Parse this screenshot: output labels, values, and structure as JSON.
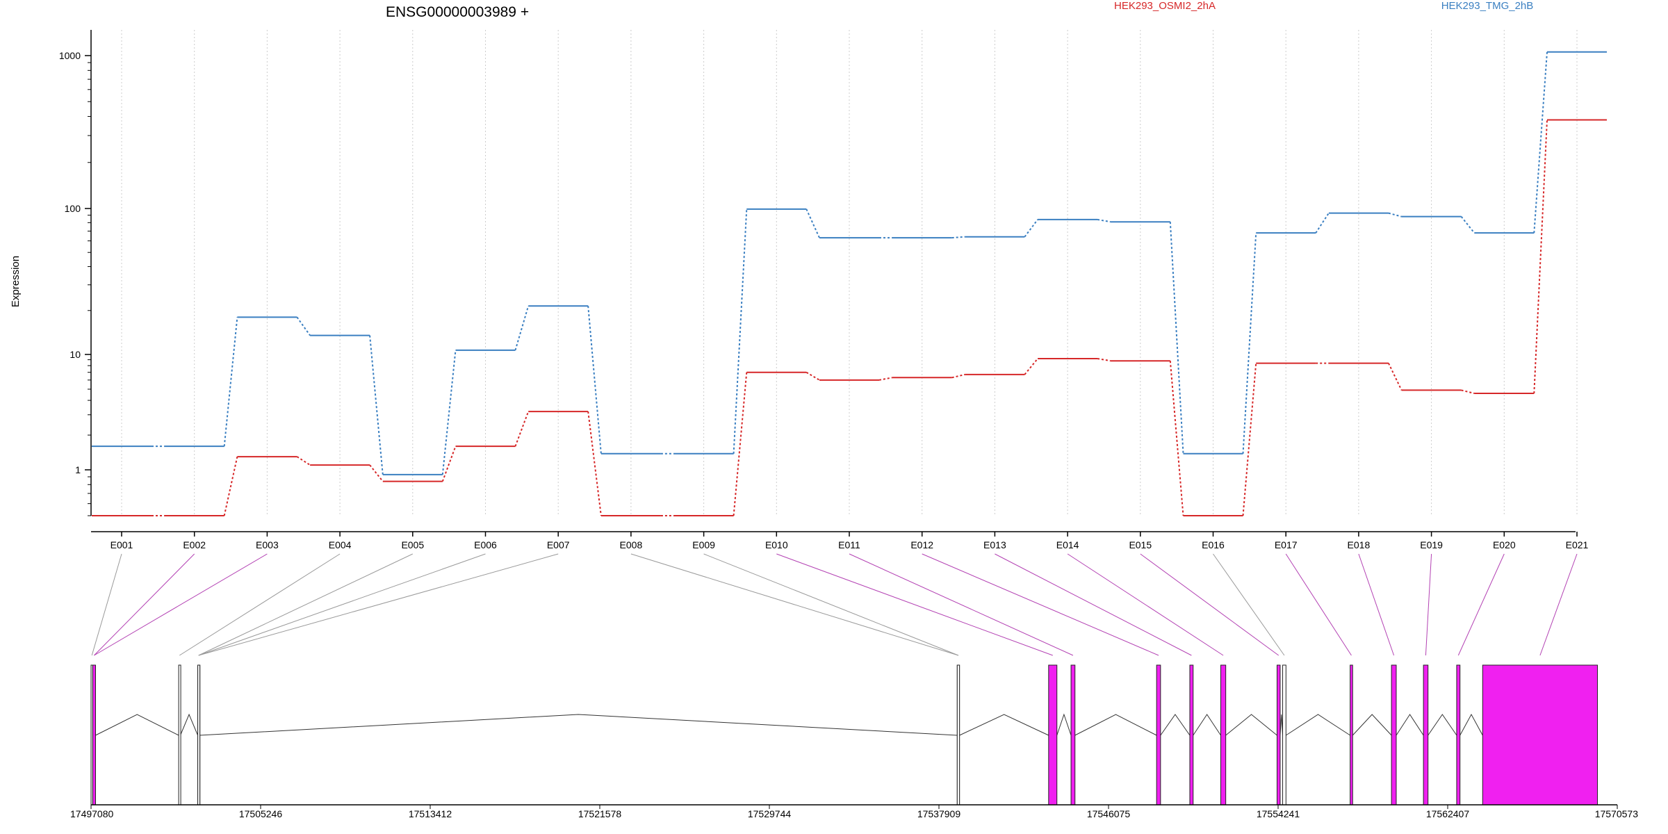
{
  "chart_data": {
    "type": "line",
    "title": "ENSG00000003989 +",
    "xlabel": "",
    "ylabel": "Expression",
    "y_scale": "log",
    "ylim": [
      0.5,
      1200
    ],
    "yticks": [
      1,
      10,
      100,
      1000
    ],
    "ytick_labels": [
      "1",
      "10",
      "100",
      "1000"
    ],
    "grid": "vertical dotted lines at each exon",
    "legend_position": "top-right",
    "categories": [
      "E001",
      "E002",
      "E003",
      "E004",
      "E005",
      "E006",
      "E007",
      "E008",
      "E009",
      "E010",
      "E011",
      "E012",
      "E013",
      "E014",
      "E015",
      "E016",
      "E017",
      "E018",
      "E019",
      "E020",
      "E021"
    ],
    "series": [
      {
        "name": "HEK293_OSMI2_2hA",
        "color": "#d62728",
        "values": [
          0.48,
          0.48,
          1.3,
          1.1,
          0.84,
          1.6,
          3.2,
          0.48,
          0.48,
          7.0,
          6.0,
          6.3,
          6.7,
          9.2,
          8.8,
          0.48,
          8.4,
          8.4,
          4.9,
          4.6,
          380
        ]
      },
      {
        "name": "HEK293_TMG_2hB",
        "color": "#3a7fc1",
        "values": [
          1.6,
          1.6,
          18.0,
          13.5,
          0.93,
          10.7,
          21.5,
          1.38,
          1.38,
          99,
          63,
          63,
          64,
          84,
          81,
          1.38,
          68,
          93,
          88,
          68,
          1100
        ]
      }
    ],
    "gene_model": {
      "coordinate_ticks": [
        "17497080",
        "17505246",
        "17513412",
        "17521578",
        "17529744",
        "17537909",
        "17546075",
        "17554241",
        "17562407",
        "17570573"
      ],
      "coord_range": [
        17497080,
        17570573
      ],
      "highlight_color": "#f020f0",
      "exon_color_plain": "#ffffff",
      "exons": [
        {
          "id": "E001",
          "start": 17497080,
          "end": 17497160,
          "type": "plain"
        },
        {
          "id": "E002",
          "start": 17497160,
          "end": 17497295,
          "type": "highlighted"
        },
        {
          "id": "E003",
          "start": 17497160,
          "end": 17497295,
          "type": "highlighted"
        },
        {
          "id": "E004",
          "start": 17501300,
          "end": 17501380,
          "type": "plain"
        },
        {
          "id": "E005",
          "start": 17502220,
          "end": 17502300,
          "type": "plain"
        },
        {
          "id": "E006",
          "start": 17502220,
          "end": 17502300,
          "type": "plain"
        },
        {
          "id": "E007",
          "start": 17502220,
          "end": 17502300,
          "type": "plain"
        },
        {
          "id": "E008",
          "start": 17538790,
          "end": 17538900,
          "type": "plain"
        },
        {
          "id": "E009",
          "start": 17538790,
          "end": 17538900,
          "type": "plain"
        },
        {
          "id": "E010",
          "start": 17543190,
          "end": 17543590,
          "type": "highlighted"
        },
        {
          "id": "E011",
          "start": 17544270,
          "end": 17544460,
          "type": "highlighted"
        },
        {
          "id": "E012",
          "start": 17548390,
          "end": 17548580,
          "type": "highlighted"
        },
        {
          "id": "E013",
          "start": 17549990,
          "end": 17550150,
          "type": "highlighted"
        },
        {
          "id": "E014",
          "start": 17551480,
          "end": 17551720,
          "type": "highlighted"
        },
        {
          "id": "E015",
          "start": 17554190,
          "end": 17554340,
          "type": "highlighted"
        },
        {
          "id": "E016",
          "start": 17554460,
          "end": 17554620,
          "type": "plain"
        },
        {
          "id": "E017",
          "start": 17557710,
          "end": 17557830,
          "type": "highlighted"
        },
        {
          "id": "E018",
          "start": 17559700,
          "end": 17559930,
          "type": "highlighted"
        },
        {
          "id": "E019",
          "start": 17561240,
          "end": 17561460,
          "type": "highlighted"
        },
        {
          "id": "E020",
          "start": 17562840,
          "end": 17563000,
          "type": "highlighted"
        },
        {
          "id": "E021",
          "start": 17564090,
          "end": 17569620,
          "type": "highlighted"
        }
      ]
    }
  }
}
